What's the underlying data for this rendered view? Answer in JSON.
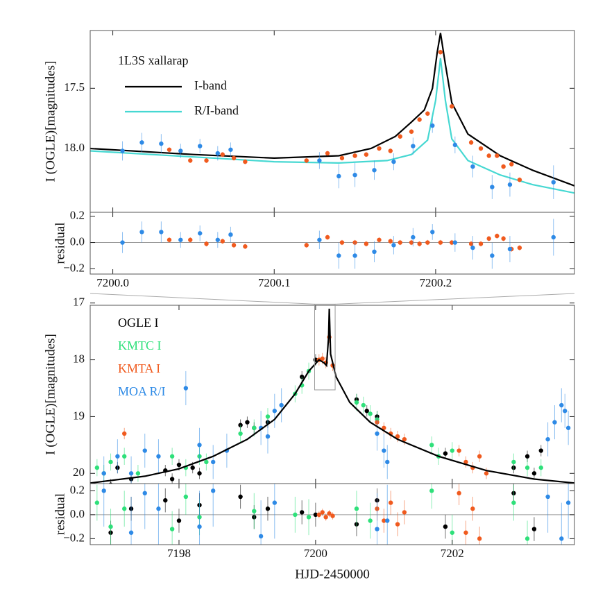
{
  "chart_data": [
    {
      "type": "scatter",
      "ylabel": "I (OGLE)[magnitudes]",
      "ylim": [
        17.02,
        18.53
      ],
      "y_inverted": true,
      "yticks": [
        17.5,
        {
          "value": 18,
          "label": "18.0"
        }
      ],
      "legend_title": "1L3S xallarap",
      "legend": "upper left",
      "series": [
        {
          "name": "I-band",
          "color": "#000000",
          "style": "line",
          "x": [
            7199.986,
            7200.05,
            7200.1,
            7200.14,
            7200.16,
            7200.175,
            7200.185,
            7200.193,
            7200.198,
            7200.201,
            7200.203,
            7200.206,
            7200.21,
            7200.22,
            7200.24,
            7200.26,
            7200.286
          ],
          "values": [
            18.0,
            18.05,
            18.08,
            18.06,
            18.0,
            17.9,
            17.78,
            17.68,
            17.5,
            17.2,
            17.04,
            17.3,
            17.62,
            17.88,
            18.06,
            18.18,
            18.31
          ]
        },
        {
          "name": "R/I-band",
          "color": "#46d8d2",
          "style": "line",
          "x": [
            7199.986,
            7200.05,
            7200.1,
            7200.14,
            7200.17,
            7200.185,
            7200.195,
            7200.2,
            7200.203,
            7200.206,
            7200.21,
            7200.22,
            7200.24,
            7200.26,
            7200.286
          ],
          "values": [
            18.02,
            18.07,
            18.11,
            18.12,
            18.1,
            18.05,
            17.93,
            17.6,
            17.25,
            17.6,
            17.92,
            18.1,
            18.22,
            18.3,
            18.37
          ]
        },
        {
          "color": "#f05a1e",
          "style": "points",
          "x": [
            7200.035,
            7200.048,
            7200.058,
            7200.068,
            7200.075,
            7200.082,
            7200.12,
            7200.133,
            7200.142,
            7200.15,
            7200.157,
            7200.165,
            7200.172,
            7200.178,
            7200.185,
            7200.19,
            7200.195,
            7200.203,
            7200.21,
            7200.222,
            7200.228,
            7200.233,
            7200.238,
            7200.242,
            7200.247,
            7200.252
          ],
          "values": [
            18.01,
            18.1,
            18.1,
            18.05,
            18.08,
            18.11,
            18.1,
            18.04,
            18.08,
            18.06,
            18.05,
            18.0,
            18.02,
            17.9,
            17.86,
            17.76,
            17.71,
            17.2,
            17.65,
            17.95,
            18.0,
            18.06,
            18.06,
            18.15,
            18.13,
            18.26
          ],
          "errors": [
            0.02,
            0.02,
            0.02,
            0.02,
            0.02,
            0.02,
            0.02,
            0.02,
            0.02,
            0.02,
            0.02,
            0.02,
            0.02,
            0.02,
            0.02,
            0.02,
            0.02,
            0.02,
            0.02,
            0.02,
            0.02,
            0.02,
            0.02,
            0.02,
            0.02,
            0.02
          ]
        },
        {
          "color": "#2e8ae6",
          "style": "points",
          "x": [
            7200.006,
            7200.018,
            7200.03,
            7200.042,
            7200.054,
            7200.065,
            7200.073,
            7200.128,
            7200.14,
            7200.15,
            7200.162,
            7200.174,
            7200.186,
            7200.198,
            7200.212,
            7200.223,
            7200.235,
            7200.246,
            7200.273
          ],
          "values": [
            18.02,
            17.95,
            17.96,
            18.02,
            17.98,
            18.04,
            18.01,
            18.1,
            18.23,
            18.22,
            18.18,
            18.11,
            17.98,
            17.81,
            17.97,
            18.15,
            18.32,
            18.3,
            18.28
          ],
          "errors": [
            0.08,
            0.08,
            0.08,
            0.06,
            0.06,
            0.06,
            0.06,
            0.07,
            0.1,
            0.1,
            0.08,
            0.07,
            0.07,
            0.06,
            0.07,
            0.09,
            0.1,
            0.1,
            0.14
          ]
        }
      ]
    },
    {
      "type": "scatter",
      "ylabel": "residual",
      "ylim": [
        -0.24,
        0.23
      ],
      "reference_line": 0,
      "yticks": [
        {
          "value": -0.2,
          "label": "−0.2"
        },
        {
          "value": 0,
          "label": "0.0"
        },
        0.2
      ],
      "xlim": [
        7199.986,
        7200.286
      ],
      "xticks": [
        {
          "value": 7200,
          "label": "7200.0"
        },
        7200.1,
        7200.2
      ],
      "series": [
        {
          "color": "#f05a1e",
          "style": "points",
          "x": [
            7200.035,
            7200.048,
            7200.058,
            7200.068,
            7200.075,
            7200.082,
            7200.12,
            7200.133,
            7200.142,
            7200.15,
            7200.157,
            7200.165,
            7200.172,
            7200.178,
            7200.185,
            7200.19,
            7200.195,
            7200.203,
            7200.21,
            7200.222,
            7200.228,
            7200.233,
            7200.238,
            7200.242,
            7200.247,
            7200.252
          ],
          "values": [
            0.02,
            0.02,
            -0.01,
            0.01,
            -0.02,
            -0.03,
            -0.02,
            0.04,
            0.0,
            0.0,
            -0.01,
            0.02,
            0.01,
            0.0,
            0.0,
            -0.01,
            0.0,
            0.0,
            0.0,
            -0.01,
            -0.01,
            0.03,
            0.05,
            0.03,
            -0.05,
            -0.04
          ],
          "errors": [
            0.02,
            0.02,
            0.02,
            0.02,
            0.02,
            0.02,
            0.02,
            0.02,
            0.02,
            0.02,
            0.02,
            0.02,
            0.02,
            0.02,
            0.02,
            0.02,
            0.02,
            0.02,
            0.02,
            0.02,
            0.02,
            0.02,
            0.02,
            0.02,
            0.02,
            0.02
          ]
        },
        {
          "color": "#2e8ae6",
          "style": "points",
          "x": [
            7200.006,
            7200.018,
            7200.03,
            7200.042,
            7200.054,
            7200.065,
            7200.073,
            7200.128,
            7200.14,
            7200.15,
            7200.162,
            7200.174,
            7200.186,
            7200.198,
            7200.212,
            7200.223,
            7200.235,
            7200.246,
            7200.273
          ],
          "values": [
            0.0,
            0.08,
            0.08,
            0.02,
            0.07,
            0.02,
            0.06,
            0.02,
            -0.1,
            -0.1,
            -0.07,
            -0.02,
            0.04,
            0.08,
            0.0,
            -0.04,
            -0.1,
            -0.05,
            0.04
          ],
          "errors": [
            0.08,
            0.08,
            0.08,
            0.06,
            0.06,
            0.06,
            0.06,
            0.07,
            0.1,
            0.1,
            0.08,
            0.07,
            0.07,
            0.06,
            0.07,
            0.09,
            0.1,
            0.1,
            0.14
          ]
        }
      ]
    },
    {
      "type": "scatter",
      "ylabel": "I (OGLE)[magnitudes]",
      "ylim": [
        17.04,
        20.18
      ],
      "y_inverted": true,
      "yticks": [
        17,
        18,
        19,
        20
      ],
      "legend": "upper left",
      "series": [
        {
          "name": "OGLE I",
          "color": "#000000",
          "style": "points",
          "x": [
            7197.0,
            7197.1,
            7197.3,
            7197.8,
            7197.9,
            7198.0,
            7198.2,
            7198.3,
            7198.9,
            7199.0,
            7199.1,
            7199.3,
            7199.8,
            7200.0,
            7200.6,
            7200.75,
            7200.9,
            7201.9,
            7202.9,
            7203.1,
            7203.2,
            7203.3
          ],
          "values": [
            20.2,
            19.9,
            20.1,
            19.95,
            20.1,
            19.85,
            19.9,
            20.0,
            19.15,
            19.1,
            19.2,
            19.1,
            18.3,
            18.0,
            18.7,
            18.9,
            19.0,
            19.65,
            19.9,
            19.7,
            20.0,
            19.6
          ],
          "errors": [
            0.1,
            0.1,
            0.1,
            0.1,
            0.1,
            0.1,
            0.1,
            0.1,
            0.1,
            0.1,
            0.1,
            0.1,
            0.1,
            0.1,
            0.1,
            0.1,
            0.1,
            0.1,
            0.1,
            0.1,
            0.1,
            0.1
          ]
        },
        {
          "name": "KMTC I",
          "color": "#2ee07a",
          "style": "points",
          "x": [
            7196.8,
            7196.9,
            7197.0,
            7197.2,
            7197.4,
            7197.9,
            7198.1,
            7198.3,
            7198.4,
            7198.9,
            7199.1,
            7199.3,
            7199.7,
            7199.8,
            7199.9,
            7200.6,
            7200.7,
            7200.8,
            7200.9,
            7201.7,
            7201.8,
            7202.0,
            7202.9,
            7203.1,
            7203.3
          ],
          "values": [
            19.9,
            20.0,
            19.8,
            19.7,
            20.0,
            19.7,
            19.9,
            19.7,
            19.8,
            19.3,
            19.2,
            19.0,
            18.6,
            18.45,
            18.2,
            18.75,
            18.8,
            18.95,
            19.05,
            19.5,
            19.7,
            19.6,
            19.8,
            19.9,
            19.9
          ],
          "errors": [
            0.15,
            0.15,
            0.15,
            0.15,
            0.15,
            0.15,
            0.15,
            0.15,
            0.15,
            0.15,
            0.15,
            0.15,
            0.15,
            0.15,
            0.15,
            0.15,
            0.15,
            0.15,
            0.15,
            0.15,
            0.15,
            0.15,
            0.15,
            0.15,
            0.15
          ]
        },
        {
          "name": "KMTA I",
          "color": "#f05a1e",
          "style": "points",
          "x": [
            7197.2,
            7200.05,
            7200.1,
            7200.15,
            7200.2,
            7200.25,
            7200.9,
            7201.0,
            7201.1,
            7201.2,
            7201.3,
            7202.1,
            7202.2,
            7202.3,
            7202.4,
            7202.5
          ],
          "values": [
            19.3,
            18.0,
            17.98,
            18.05,
            17.6,
            18.1,
            19.1,
            19.2,
            19.3,
            19.35,
            19.4,
            19.6,
            19.8,
            19.9,
            19.7,
            20.0
          ],
          "errors": [
            0.1,
            0.1,
            0.1,
            0.1,
            0.1,
            0.1,
            0.1,
            0.1,
            0.1,
            0.1,
            0.1,
            0.1,
            0.1,
            0.1,
            0.1,
            0.1
          ]
        },
        {
          "name": "MOA R/I",
          "color": "#2e8ae6",
          "style": "points",
          "x": [
            7196.9,
            7197.1,
            7197.3,
            7197.5,
            7197.7,
            7198.1,
            7198.3,
            7198.5,
            7198.7,
            7199.2,
            7199.3,
            7199.4,
            7199.5,
            7200.9,
            7201.0,
            7201.05,
            7203.4,
            7203.5,
            7203.6,
            7203.65,
            7203.7
          ],
          "values": [
            20.0,
            19.7,
            20.0,
            19.6,
            19.7,
            18.5,
            19.5,
            19.8,
            19.6,
            19.2,
            19.35,
            18.9,
            18.8,
            19.3,
            19.6,
            19.8,
            19.4,
            19.1,
            18.8,
            18.9,
            19.2
          ],
          "errors": [
            0.3,
            0.3,
            0.3,
            0.3,
            0.3,
            0.3,
            0.3,
            0.3,
            0.3,
            0.3,
            0.3,
            0.3,
            0.3,
            0.3,
            0.3,
            0.3,
            0.3,
            0.3,
            0.3,
            0.3,
            0.3
          ]
        },
        {
          "color": "#000000",
          "style": "line",
          "x": [
            7196.7,
            7197.5,
            7198.0,
            7198.5,
            7199.0,
            7199.4,
            7199.7,
            7199.9,
            7200.05,
            7200.12,
            7200.16,
            7200.19,
            7200.2,
            7200.22,
            7200.3,
            7200.5,
            7200.8,
            7201.2,
            7201.8,
            7202.5,
            7203.2,
            7203.79
          ],
          "values": [
            20.17,
            20.05,
            19.92,
            19.7,
            19.4,
            19.05,
            18.6,
            18.2,
            18.0,
            18.05,
            18.1,
            17.6,
            17.1,
            17.9,
            18.3,
            18.75,
            19.1,
            19.4,
            19.7,
            19.95,
            20.1,
            20.17
          ]
        }
      ]
    },
    {
      "type": "scatter",
      "ylabel": "residual",
      "xlabel": "HJD-2450000",
      "ylim": [
        -0.25,
        0.26
      ],
      "reference_line": 0,
      "yticks": [
        {
          "value": -0.2,
          "label": "−0.2"
        },
        {
          "value": 0,
          "label": "0.0"
        },
        0.2
      ],
      "xlim": [
        7196.7,
        7203.79
      ],
      "xticks": [
        7198,
        7200,
        7202
      ],
      "series": [
        {
          "color": "#000000",
          "style": "points",
          "x": [
            7197.0,
            7197.3,
            7197.8,
            7198.0,
            7198.3,
            7198.9,
            7199.1,
            7199.3,
            7199.8,
            7200.0,
            7200.6,
            7200.9,
            7201.9,
            7202.9,
            7203.2
          ],
          "values": [
            -0.15,
            0.05,
            0.12,
            -0.05,
            0.08,
            0.15,
            -0.02,
            0.05,
            0.02,
            0.0,
            -0.08,
            0.12,
            -0.1,
            0.18,
            -0.12
          ],
          "errors": [
            0.1,
            0.1,
            0.1,
            0.1,
            0.1,
            0.1,
            0.1,
            0.1,
            0.1,
            0.1,
            0.1,
            0.1,
            0.1,
            0.1,
            0.1
          ]
        },
        {
          "color": "#2ee07a",
          "style": "points",
          "x": [
            7196.8,
            7197.0,
            7197.2,
            7197.9,
            7198.1,
            7198.3,
            7199.1,
            7199.7,
            7199.9,
            7200.6,
            7200.8,
            7201.7,
            7202.0,
            7202.9,
            7203.1
          ],
          "values": [
            0.1,
            -0.1,
            0.05,
            -0.12,
            0.15,
            -0.02,
            0.03,
            0.0,
            -0.02,
            0.05,
            -0.05,
            0.2,
            -0.15,
            0.1,
            -0.2
          ],
          "errors": [
            0.15,
            0.15,
            0.15,
            0.15,
            0.15,
            0.15,
            0.15,
            0.15,
            0.15,
            0.15,
            0.15,
            0.15,
            0.15,
            0.15,
            0.15
          ]
        },
        {
          "color": "#f05a1e",
          "style": "points",
          "x": [
            7200.05,
            7200.1,
            7200.15,
            7200.2,
            7200.25,
            7200.9,
            7201.0,
            7201.1,
            7201.2,
            7201.3,
            7202.1,
            7202.2,
            7202.3,
            7202.4
          ],
          "values": [
            0.0,
            0.02,
            -0.02,
            0.01,
            -0.01,
            0.05,
            -0.05,
            0.1,
            -0.08,
            0.02,
            0.18,
            -0.15,
            0.05,
            -0.2
          ],
          "errors": [
            0.03,
            0.03,
            0.03,
            0.03,
            0.03,
            0.1,
            0.1,
            0.1,
            0.1,
            0.1,
            0.1,
            0.1,
            0.1,
            0.1
          ]
        },
        {
          "color": "#2e8ae6",
          "style": "points",
          "x": [
            7196.9,
            7197.3,
            7197.5,
            7197.7,
            7198.3,
            7198.5,
            7199.2,
            7199.4,
            7200.9,
            7201.05,
            7203.4,
            7203.6,
            7203.7
          ],
          "values": [
            0.2,
            -0.15,
            0.18,
            0.05,
            -0.1,
            0.2,
            -0.18,
            0.1,
            -0.12,
            -0.05,
            0.15,
            -0.2,
            0.1
          ],
          "errors": [
            0.3,
            0.3,
            0.3,
            0.3,
            0.3,
            0.3,
            0.3,
            0.3,
            0.3,
            0.3,
            0.3,
            0.3,
            0.3
          ]
        }
      ]
    }
  ]
}
